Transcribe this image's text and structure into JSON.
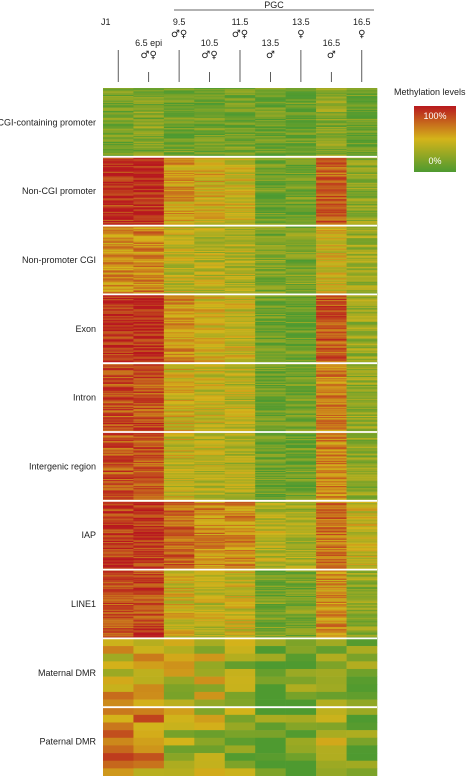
{
  "chart_data": {
    "type": "heatmap",
    "title": "",
    "group_label": "PGC",
    "legend": {
      "title": "Methylation levels",
      "max_label": "100%",
      "min_label": "0%",
      "placement": "right"
    },
    "color_scale": {
      "low": "#4e9a30",
      "mid": "#d4b41a",
      "high": "#b8181e",
      "min": 0,
      "max": 100
    },
    "samples": [
      {
        "stage": "J1",
        "sex": ""
      },
      {
        "stage": "6.5 epi",
        "sex": "♂♀"
      },
      {
        "stage": "9.5",
        "sex": "♂♀"
      },
      {
        "stage": "10.5",
        "sex": "♂♀"
      },
      {
        "stage": "11.5",
        "sex": "♂♀"
      },
      {
        "stage": "13.5",
        "sex": "♂"
      },
      {
        "stage": "13.5",
        "sex": "♀"
      },
      {
        "stage": "16.5",
        "sex": "♂"
      },
      {
        "stage": "16.5",
        "sex": "♀"
      }
    ],
    "rows": [
      {
        "name": "CGI-containing promoter",
        "levels": [
          15,
          20,
          12,
          12,
          14,
          10,
          10,
          22,
          10
        ]
      },
      {
        "name": "Non-CGI promoter",
        "levels": [
          92,
          92,
          58,
          52,
          46,
          12,
          12,
          78,
          24
        ]
      },
      {
        "name": "Non-promoter CGI",
        "levels": [
          62,
          66,
          42,
          38,
          36,
          18,
          18,
          48,
          28
        ]
      },
      {
        "name": "Exon",
        "levels": [
          93,
          92,
          62,
          48,
          44,
          12,
          12,
          80,
          28
        ]
      },
      {
        "name": "Intron",
        "levels": [
          82,
          82,
          48,
          42,
          38,
          12,
          12,
          66,
          26
        ]
      },
      {
        "name": "Intergenic  region",
        "levels": [
          80,
          78,
          45,
          38,
          36,
          12,
          12,
          64,
          24
        ]
      },
      {
        "name": "IAP",
        "levels": [
          88,
          90,
          74,
          62,
          62,
          38,
          32,
          72,
          44
        ]
      },
      {
        "name": "LINE1",
        "levels": [
          83,
          85,
          48,
          42,
          44,
          16,
          16,
          62,
          26
        ]
      },
      {
        "name": "Maternal DMR",
        "levels": [
          50,
          52,
          42,
          38,
          32,
          12,
          12,
          32,
          18
        ]
      },
      {
        "name": "Paternal DMR",
        "levels": [
          72,
          64,
          36,
          32,
          26,
          10,
          10,
          40,
          12
        ]
      }
    ]
  }
}
